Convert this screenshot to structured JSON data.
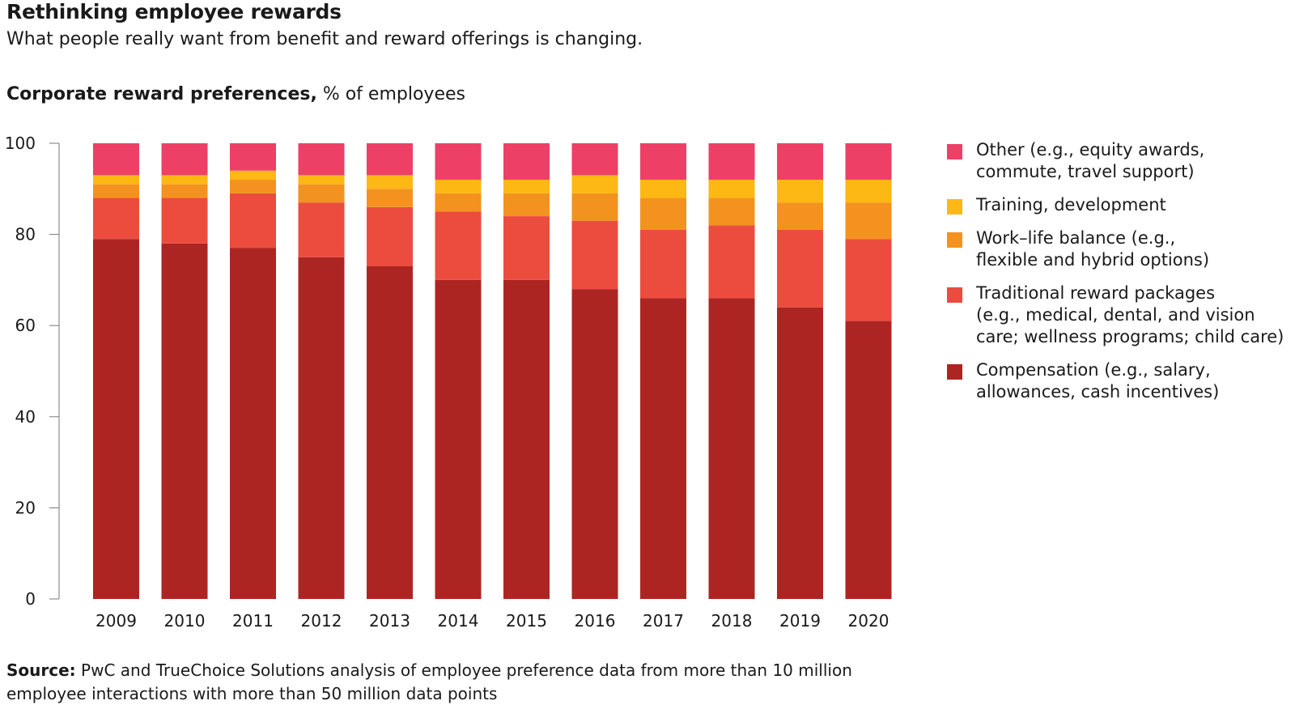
{
  "header": {
    "title": "Rethinking employee rewards",
    "subtitle": "What people really want from benefit and reward offerings is changing."
  },
  "chart_heading": {
    "bold": "Corporate reward preferences,",
    "normal": " % of employees"
  },
  "source": {
    "label": "Source:",
    "text": " PwC and TrueChoice Solutions analysis of employee preference data from more than 10 million employee interactions with more than 50 million data points"
  },
  "colors": {
    "compensation": "#ad2523",
    "traditional": "#ec4c3e",
    "worklife": "#f4921f",
    "training": "#fdb813",
    "other": "#ee3f67"
  },
  "chart_data": {
    "type": "bar",
    "stacked": true,
    "title": "Corporate reward preferences, % of employees",
    "categories": [
      "2009",
      "2010",
      "2011",
      "2012",
      "2013",
      "2014",
      "2015",
      "2016",
      "2017",
      "2018",
      "2019",
      "2020"
    ],
    "ylim": [
      0,
      100
    ],
    "yticks": [
      0,
      20,
      40,
      60,
      80,
      100
    ],
    "grid": false,
    "legend_position": "right",
    "series": [
      {
        "name": "Compensation (e.g., salary, allowances, cash incentives)",
        "color": "#ad2523",
        "values": [
          79,
          78,
          77,
          75,
          73,
          70,
          70,
          68,
          66,
          66,
          64,
          61
        ]
      },
      {
        "name": "Traditional reward packages (e.g., medical, dental, and vision care; wellness programs; child care)",
        "color": "#ec4c3e",
        "values": [
          9,
          10,
          12,
          12,
          13,
          15,
          14,
          15,
          15,
          16,
          17,
          18
        ]
      },
      {
        "name": "Work–life balance (e.g., flexible and hybrid options)",
        "color": "#f4921f",
        "values": [
          3,
          3,
          3,
          4,
          4,
          4,
          5,
          6,
          7,
          6,
          6,
          8
        ]
      },
      {
        "name": "Training, development",
        "color": "#fdb813",
        "values": [
          2,
          2,
          2,
          2,
          3,
          3,
          3,
          4,
          4,
          4,
          5,
          5
        ]
      },
      {
        "name": "Other (e.g., equity awards, commute, travel support)",
        "color": "#ee3f67",
        "values": [
          7,
          7,
          6,
          7,
          7,
          8,
          8,
          7,
          8,
          8,
          8,
          8
        ]
      }
    ]
  },
  "legend": [
    {
      "lines": [
        "Other (e.g., equity awards,",
        "commute, travel support)"
      ],
      "color": "#ee3f67",
      "icon": "square"
    },
    {
      "lines": [
        "Training, development"
      ],
      "color": "#fdb813",
      "icon": "square"
    },
    {
      "lines": [
        "Work–life balance (e.g.,",
        "flexible and hybrid options)"
      ],
      "color": "#f4921f",
      "icon": "square"
    },
    {
      "lines": [
        "Traditional reward packages",
        "(e.g., medical, dental, and vision",
        "care; wellness programs; child care)"
      ],
      "color": "#ec4c3e",
      "icon": "square"
    },
    {
      "lines": [
        "Compensation (e.g., salary,",
        "allowances, cash incentives)"
      ],
      "color": "#ad2523",
      "icon": "square"
    }
  ]
}
